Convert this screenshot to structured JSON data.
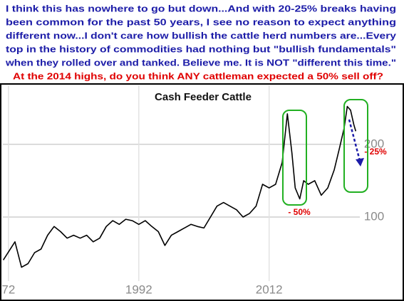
{
  "commentary": {
    "lines": [
      "I think this has nowhere to go but down...And with 20-25% breaks having",
      "been common for the past 50 years, I see no reason to expect anything",
      "different now...I don't care how bullish the cattle herd numbers are...Every",
      "top in the history of commodities had nothing but \"bullish fundamentals\"",
      "when they rolled over and tanked. Believe me. It is NOT \"different this time.\""
    ],
    "question": "At the 2014 highs, do you think ANY cattleman expected a 50% sell off?"
  },
  "chart_data": {
    "type": "line",
    "title": "Cash Feeder Cattle",
    "x": [
      1971.2,
      1973,
      1974,
      1975,
      1976,
      1977,
      1978,
      1979,
      1980,
      1981,
      1982,
      1983,
      1984,
      1985,
      1986,
      1987,
      1988,
      1989,
      1990,
      1991,
      1992,
      1993,
      1994,
      1995,
      1996,
      1997,
      1998,
      1999,
      2000,
      2001,
      2002,
      2003,
      2004,
      2005,
      2006,
      2007,
      2008,
      2009,
      2010,
      2011,
      2012,
      2013,
      2014,
      2014.8,
      2015.5,
      2016,
      2016.7,
      2017.3,
      2018,
      2019,
      2020,
      2021,
      2022,
      2022.8,
      2023.5,
      2024,
      2024.5,
      2025,
      2025.3
    ],
    "series": [
      {
        "color": "#000000",
        "values": [
          41,
          66,
          31,
          36,
          51,
          56,
          75,
          87,
          80,
          71,
          75,
          71,
          75,
          66,
          71,
          87,
          95,
          90,
          97,
          95,
          90,
          95,
          87,
          80,
          61,
          75,
          80,
          85,
          90,
          87,
          85,
          100,
          115,
          120,
          115,
          110,
          100,
          105,
          115,
          145,
          140,
          145,
          175,
          242,
          188,
          140,
          125,
          150,
          145,
          150,
          130,
          140,
          165,
          195,
          222,
          252,
          247,
          227,
          218
        ]
      }
    ],
    "xlim": [
      1970.7,
      2032.7
    ],
    "ylim": [
      12,
      281
    ],
    "xticks": [
      {
        "value": 1972,
        "label": "72"
      },
      1992,
      2012
    ],
    "yticks": [
      100,
      200
    ],
    "grid": true,
    "annotations": [
      "- 50%",
      "- 25%"
    ]
  }
}
